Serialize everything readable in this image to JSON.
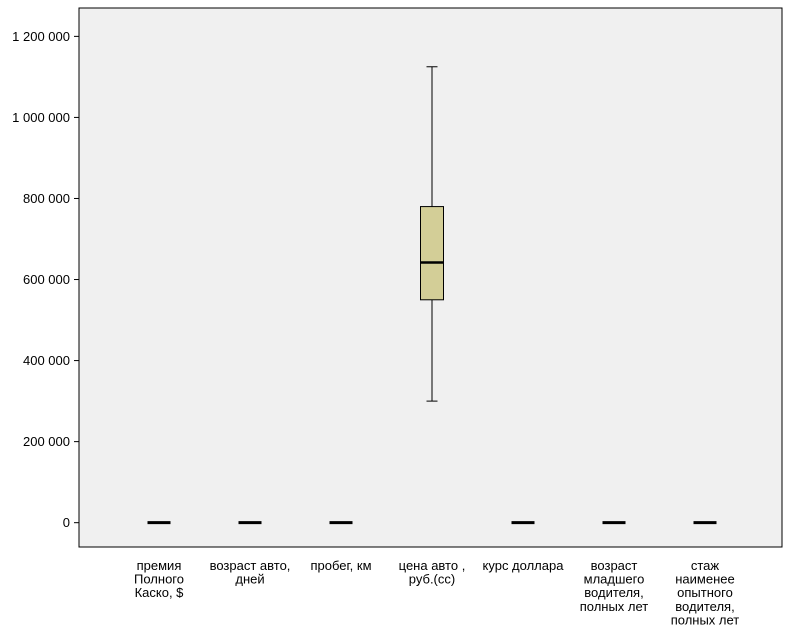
{
  "chart_data": {
    "type": "boxplot",
    "title": "",
    "xlabel": "",
    "ylabel": "",
    "ylim": [
      -60000,
      1270000
    ],
    "yticks": [
      0,
      200000,
      400000,
      600000,
      800000,
      1000000,
      1200000
    ],
    "ytick_labels": [
      "0",
      "200 000",
      "400 000",
      "600 000",
      "800 000",
      "1 000 000",
      "1 200 000"
    ],
    "grid": false,
    "colors": {
      "plot_bg": "#f0f0f0",
      "box_fill": "#d3ce97",
      "median": "#000000"
    },
    "categories": [
      {
        "label": [
          "премия",
          "Полного",
          "Каско, $"
        ],
        "min": 0,
        "q1": 0,
        "median": 0,
        "q3": 0,
        "max": 0
      },
      {
        "label": [
          "возраст авто,",
          "дней"
        ],
        "min": 0,
        "q1": 0,
        "median": 0,
        "q3": 0,
        "max": 0
      },
      {
        "label": [
          "пробег, км"
        ],
        "min": 0,
        "q1": 0,
        "median": 0,
        "q3": 0,
        "max": 0
      },
      {
        "label": [
          "цена авто ,",
          "руб.(сс)"
        ],
        "min": 300000,
        "q1": 550000,
        "median": 642000,
        "q3": 780000,
        "max": 1125000
      },
      {
        "label": [
          "курс доллара"
        ],
        "min": 0,
        "q1": 0,
        "median": 0,
        "q3": 0,
        "max": 0
      },
      {
        "label": [
          "возраст",
          "младшего",
          "водителя,",
          "полных лет"
        ],
        "min": 0,
        "q1": 0,
        "median": 0,
        "q3": 0,
        "max": 0
      },
      {
        "label": [
          "стаж",
          "наименее",
          "опытного",
          "водителя,",
          "полных лет"
        ],
        "min": 0,
        "q1": 0,
        "median": 0,
        "q3": 0,
        "max": 0
      }
    ]
  }
}
